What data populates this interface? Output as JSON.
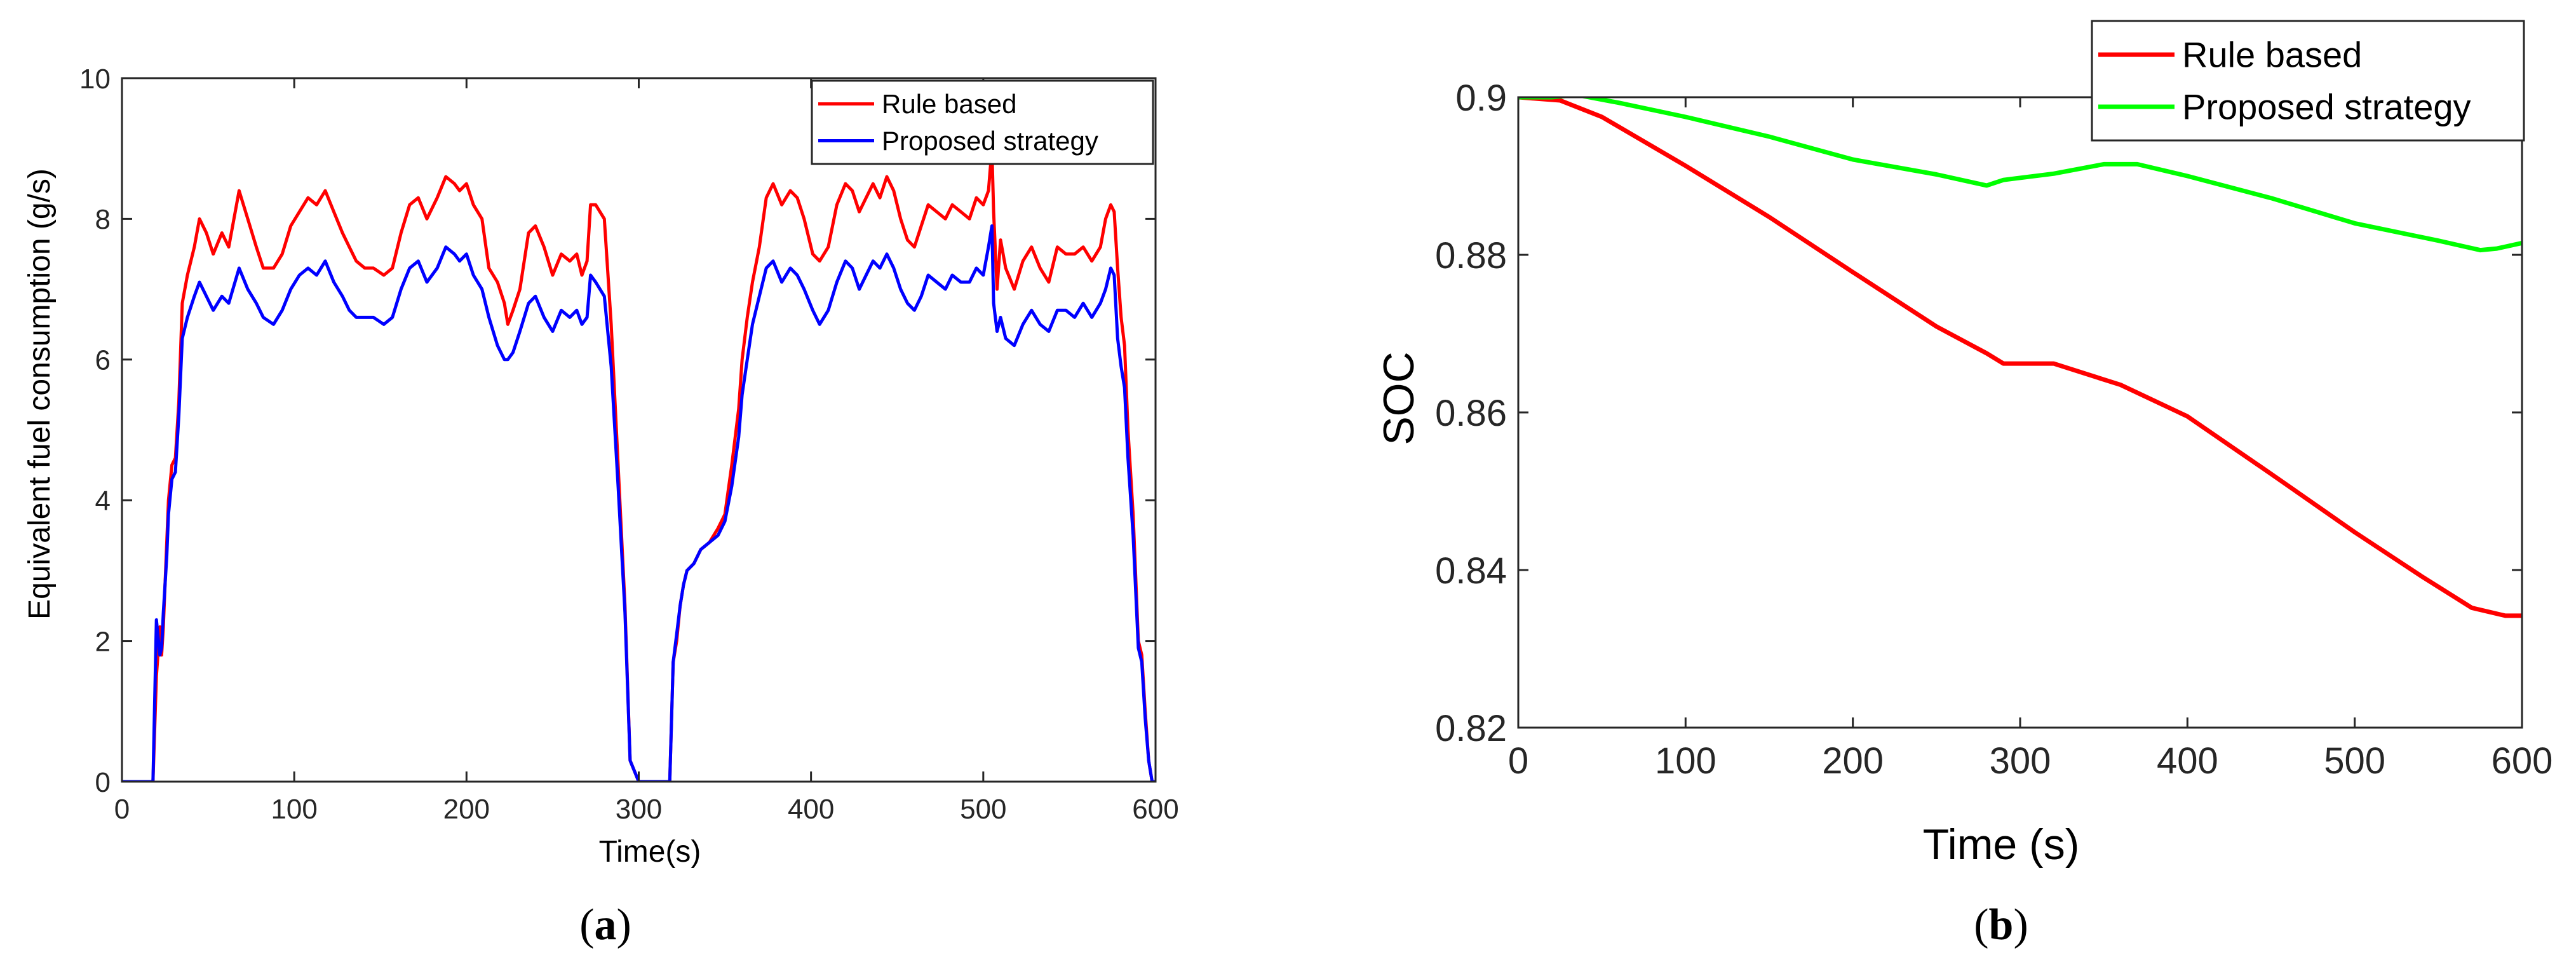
{
  "chart_data": [
    {
      "type": "line",
      "panel": "a",
      "caption_letter": "a",
      "caption_open": "(",
      "caption_close": ")",
      "xlabel": "Time(s)",
      "ylabel": "Equivalent fuel consumption (g/s)",
      "xlim": [
        0,
        600
      ],
      "ylim": [
        0,
        10
      ],
      "xticks": [
        0,
        100,
        200,
        300,
        400,
        500,
        600
      ],
      "yticks": [
        0,
        2,
        4,
        6,
        8,
        10
      ],
      "grid": false,
      "legend_position": "top-right",
      "series": [
        {
          "name": "Rule based",
          "color": "#ff0000",
          "x": [
            0,
            18,
            20,
            22,
            23,
            24,
            26,
            27,
            29,
            31,
            33,
            35,
            38,
            42,
            45,
            49,
            53,
            58,
            62,
            68,
            73,
            78,
            82,
            88,
            93,
            98,
            103,
            108,
            113,
            118,
            123,
            128,
            132,
            136,
            141,
            146,
            152,
            157,
            162,
            167,
            172,
            177,
            183,
            188,
            193,
            196,
            200,
            204,
            209,
            213,
            218,
            222,
            224,
            227,
            231,
            236,
            240,
            245,
            250,
            255,
            260,
            264,
            267,
            270,
            272,
            275,
            280,
            284,
            288,
            292,
            295,
            300,
            310,
            318,
            320,
            322,
            324,
            326,
            328,
            332,
            336,
            341,
            346,
            350,
            354,
            358,
            360,
            363,
            366,
            370,
            374,
            378,
            383,
            388,
            392,
            396,
            401,
            405,
            410,
            415,
            420,
            424,
            428,
            432,
            436,
            440,
            444,
            448,
            452,
            456,
            460,
            464,
            468,
            473,
            478,
            482,
            487,
            492,
            496,
            500,
            503,
            505,
            506,
            508,
            510,
            513,
            518,
            523,
            528,
            533,
            538,
            543,
            548,
            553,
            558,
            563,
            568,
            571,
            574,
            576,
            578,
            580,
            582,
            584,
            587,
            590,
            592,
            594,
            596,
            598,
            600
          ],
          "y": [
            0,
            0,
            1.5,
            2.2,
            1.8,
            2.2,
            3.4,
            4.0,
            4.5,
            4.6,
            5.4,
            6.8,
            7.2,
            7.6,
            8.0,
            7.8,
            7.5,
            7.8,
            7.6,
            8.4,
            8.0,
            7.6,
            7.3,
            7.3,
            7.5,
            7.9,
            8.1,
            8.3,
            8.2,
            8.4,
            8.1,
            7.8,
            7.6,
            7.4,
            7.3,
            7.3,
            7.2,
            7.3,
            7.8,
            8.2,
            8.3,
            8.0,
            8.3,
            8.6,
            8.5,
            8.4,
            8.5,
            8.2,
            8.0,
            7.3,
            7.1,
            6.8,
            6.5,
            6.7,
            7.0,
            7.8,
            7.9,
            7.6,
            7.2,
            7.5,
            7.4,
            7.5,
            7.2,
            7.4,
            8.2,
            8.2,
            8.0,
            6.5,
            4.5,
            2.5,
            0.3,
            0,
            0,
            0,
            1.7,
            2.0,
            2.5,
            2.8,
            3.0,
            3.1,
            3.3,
            3.4,
            3.6,
            3.8,
            4.5,
            5.3,
            6.0,
            6.6,
            7.1,
            7.6,
            8.3,
            8.5,
            8.2,
            8.4,
            8.3,
            8.0,
            7.5,
            7.4,
            7.6,
            8.2,
            8.5,
            8.4,
            8.1,
            8.3,
            8.5,
            8.3,
            8.6,
            8.4,
            8.0,
            7.7,
            7.6,
            7.9,
            8.2,
            8.1,
            8.0,
            8.2,
            8.1,
            8.0,
            8.3,
            8.2,
            8.4,
            9.0,
            8.1,
            7.0,
            7.7,
            7.3,
            7.0,
            7.4,
            7.6,
            7.3,
            7.1,
            7.6,
            7.5,
            7.5,
            7.6,
            7.4,
            7.6,
            8.0,
            8.2,
            8.1,
            7.3,
            6.6,
            6.2,
            5.0,
            3.8,
            2.0,
            1.8,
            1.0,
            0.3,
            0,
            0
          ]
        },
        {
          "name": "Proposed strategy",
          "color": "#0000ff",
          "x": [
            0,
            18,
            20,
            22,
            23,
            24,
            26,
            27,
            29,
            31,
            33,
            35,
            38,
            42,
            45,
            49,
            53,
            58,
            62,
            68,
            73,
            78,
            82,
            88,
            93,
            98,
            103,
            108,
            113,
            118,
            123,
            128,
            132,
            136,
            141,
            146,
            152,
            157,
            162,
            167,
            172,
            177,
            183,
            188,
            193,
            196,
            200,
            204,
            209,
            213,
            218,
            222,
            224,
            227,
            231,
            236,
            240,
            245,
            250,
            255,
            260,
            264,
            267,
            270,
            272,
            275,
            280,
            284,
            288,
            292,
            295,
            300,
            310,
            318,
            320,
            322,
            324,
            326,
            328,
            332,
            336,
            341,
            346,
            350,
            354,
            358,
            360,
            363,
            366,
            370,
            374,
            378,
            383,
            388,
            392,
            396,
            401,
            405,
            410,
            415,
            420,
            424,
            428,
            432,
            436,
            440,
            444,
            448,
            452,
            456,
            460,
            464,
            468,
            473,
            478,
            482,
            487,
            492,
            496,
            500,
            503,
            505,
            506,
            508,
            510,
            513,
            518,
            523,
            528,
            533,
            538,
            543,
            548,
            553,
            558,
            563,
            568,
            571,
            574,
            576,
            578,
            580,
            582,
            584,
            587,
            590,
            592,
            594,
            596,
            598,
            600
          ],
          "y": [
            0,
            0,
            2.3,
            1.8,
            1.9,
            2.4,
            3.2,
            3.8,
            4.3,
            4.4,
            5.2,
            6.3,
            6.6,
            6.9,
            7.1,
            6.9,
            6.7,
            6.9,
            6.8,
            7.3,
            7.0,
            6.8,
            6.6,
            6.5,
            6.7,
            7.0,
            7.2,
            7.3,
            7.2,
            7.4,
            7.1,
            6.9,
            6.7,
            6.6,
            6.6,
            6.6,
            6.5,
            6.6,
            7.0,
            7.3,
            7.4,
            7.1,
            7.3,
            7.6,
            7.5,
            7.4,
            7.5,
            7.2,
            7.0,
            6.6,
            6.2,
            6.0,
            6.0,
            6.1,
            6.4,
            6.8,
            6.9,
            6.6,
            6.4,
            6.7,
            6.6,
            6.7,
            6.5,
            6.6,
            7.2,
            7.1,
            6.9,
            5.9,
            4.2,
            2.4,
            0.3,
            0,
            0,
            0,
            1.7,
            2.1,
            2.5,
            2.8,
            3.0,
            3.1,
            3.3,
            3.4,
            3.5,
            3.7,
            4.2,
            4.9,
            5.5,
            6.0,
            6.5,
            6.9,
            7.3,
            7.4,
            7.1,
            7.3,
            7.2,
            7.0,
            6.7,
            6.5,
            6.7,
            7.1,
            7.4,
            7.3,
            7.0,
            7.2,
            7.4,
            7.3,
            7.5,
            7.3,
            7.0,
            6.8,
            6.7,
            6.9,
            7.2,
            7.1,
            7.0,
            7.2,
            7.1,
            7.1,
            7.3,
            7.2,
            7.6,
            7.9,
            6.8,
            6.4,
            6.6,
            6.3,
            6.2,
            6.5,
            6.7,
            6.5,
            6.4,
            6.7,
            6.7,
            6.6,
            6.8,
            6.6,
            6.8,
            7.0,
            7.3,
            7.2,
            6.3,
            5.9,
            5.6,
            4.6,
            3.5,
            1.9,
            1.7,
            0.9,
            0.3,
            0,
            0
          ]
        }
      ]
    },
    {
      "type": "line",
      "panel": "b",
      "caption_letter": "b",
      "caption_open": "(",
      "caption_close": ")",
      "xlabel": "Time (s)",
      "ylabel": "SOC",
      "xlim": [
        0,
        600
      ],
      "ylim": [
        0.82,
        0.9
      ],
      "xticks": [
        0,
        100,
        200,
        300,
        400,
        500,
        600
      ],
      "yticks": [
        0.82,
        0.84,
        0.86,
        0.88,
        0.9
      ],
      "ytick_labels": [
        "0.82",
        "0.84",
        "0.86",
        "0.88",
        "0.9"
      ],
      "grid": false,
      "legend_position": "top-right, outside",
      "series": [
        {
          "name": "Rule based",
          "color": "#ff0000",
          "x": [
            0,
            25,
            50,
            100,
            150,
            200,
            250,
            280,
            290,
            320,
            360,
            400,
            450,
            500,
            540,
            570,
            590,
            600
          ],
          "y": [
            0.9,
            0.8996,
            0.8975,
            0.8913,
            0.8848,
            0.8778,
            0.8709,
            0.8675,
            0.8662,
            0.8662,
            0.8635,
            0.8595,
            0.8522,
            0.8448,
            0.8392,
            0.8352,
            0.8342,
            0.8342
          ]
        },
        {
          "name": "Proposed strategy",
          "color": "#00ff00",
          "x": [
            0,
            20,
            35,
            60,
            100,
            150,
            200,
            250,
            280,
            290,
            320,
            350,
            370,
            400,
            450,
            500,
            550,
            575,
            585,
            600
          ],
          "y": [
            0.9,
            0.9,
            0.9003,
            0.8993,
            0.8975,
            0.895,
            0.8921,
            0.8902,
            0.8888,
            0.8895,
            0.8903,
            0.8915,
            0.8915,
            0.89,
            0.8872,
            0.884,
            0.8818,
            0.8806,
            0.8808,
            0.8815
          ]
        }
      ]
    }
  ]
}
